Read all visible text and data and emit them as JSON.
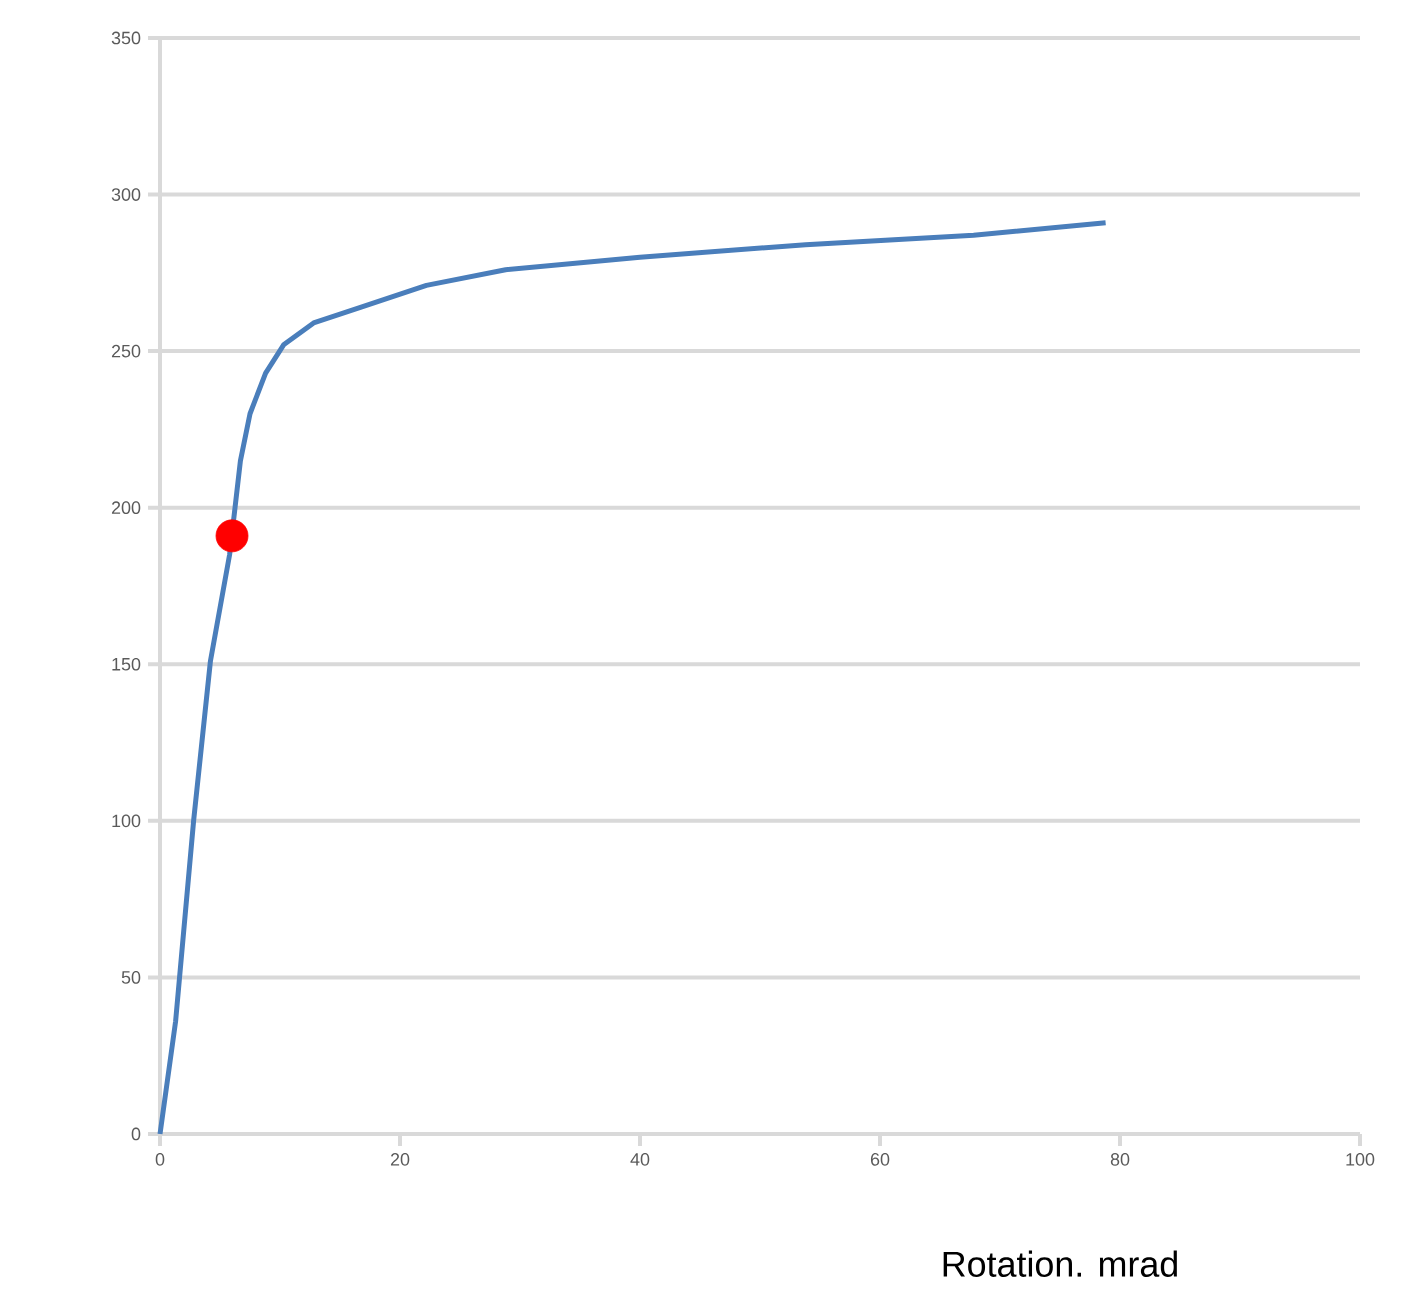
{
  "chart_data": {
    "type": "line",
    "xlabel": "Rotation. mrad",
    "xlim": [
      0,
      100
    ],
    "xticks": [
      0,
      20,
      40,
      60,
      80,
      100
    ],
    "ylim": [
      0,
      350
    ],
    "yticks": [
      0,
      50,
      100,
      150,
      200,
      250,
      300,
      350
    ],
    "grid": "y",
    "line_style": "solid",
    "series": [
      {
        "color": "#4a7ebb",
        "x": [
          0,
          1.3,
          2.8,
          4.2,
          5.8,
          6.7,
          7.5,
          8.8,
          10.3,
          12.8,
          16.7,
          22.2,
          28.8,
          40,
          53.8,
          67.8,
          78.8
        ],
        "values": [
          0,
          36,
          100,
          151,
          185,
          215,
          230,
          243,
          252,
          259,
          264,
          271,
          276,
          280,
          284,
          287,
          291
        ]
      },
      {
        "type": "scatter",
        "color": "#ff0000",
        "x": [
          6
        ],
        "values": [
          191
        ]
      }
    ]
  }
}
